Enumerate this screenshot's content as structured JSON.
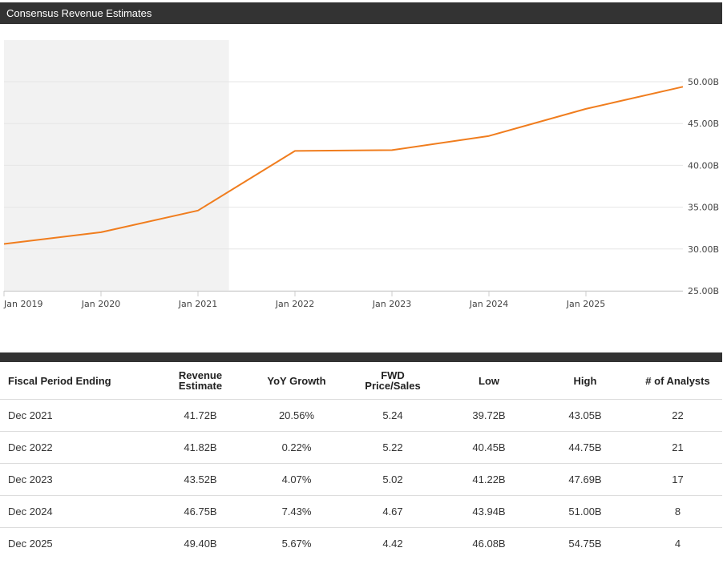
{
  "header": {
    "title": "Consensus Revenue Estimates"
  },
  "chart_data": {
    "type": "line",
    "title": "Consensus Revenue Estimates",
    "x_ticks": [
      "Jan 2019",
      "Jan 2020",
      "Jan 2021",
      "Jan 2022",
      "Jan 2023",
      "Jan 2024",
      "Jan 2025"
    ],
    "y_ticks": [
      "25.00B",
      "30.00B",
      "35.00B",
      "40.00B",
      "45.00B",
      "50.00B"
    ],
    "ylim": [
      25,
      50
    ],
    "yunit": "B",
    "series": [
      {
        "name": "Revenue Estimate",
        "color": "#f07d1e",
        "points": [
          {
            "x": 2019.0,
            "y": 30.6
          },
          {
            "x": 2020.0,
            "y": 32.0
          },
          {
            "x": 2021.0,
            "y": 34.6
          },
          {
            "x": 2022.0,
            "y": 41.72
          },
          {
            "x": 2023.0,
            "y": 41.82
          },
          {
            "x": 2024.0,
            "y": 43.52
          },
          {
            "x": 2025.0,
            "y": 46.75
          },
          {
            "x": 2026.0,
            "y": 49.4
          }
        ]
      }
    ],
    "shaded_region": {
      "x_start": 2019.0,
      "x_end": 2021.32,
      "meaning": "historical actuals"
    },
    "grid": true
  },
  "table": {
    "headers": [
      "Fiscal Period Ending",
      "Revenue\nEstimate",
      "YoY Growth",
      "FWD\nPrice/Sales",
      "Low",
      "High",
      "# of Analysts"
    ],
    "rows": [
      [
        "Dec 2021",
        "41.72B",
        "20.56%",
        "5.24",
        "39.72B",
        "43.05B",
        "22"
      ],
      [
        "Dec 2022",
        "41.82B",
        "0.22%",
        "5.22",
        "40.45B",
        "44.75B",
        "21"
      ],
      [
        "Dec 2023",
        "43.52B",
        "4.07%",
        "5.02",
        "41.22B",
        "47.69B",
        "17"
      ],
      [
        "Dec 2024",
        "46.75B",
        "7.43%",
        "4.67",
        "43.94B",
        "51.00B",
        "8"
      ],
      [
        "Dec 2025",
        "49.40B",
        "5.67%",
        "4.42",
        "46.08B",
        "54.75B",
        "4"
      ]
    ]
  }
}
